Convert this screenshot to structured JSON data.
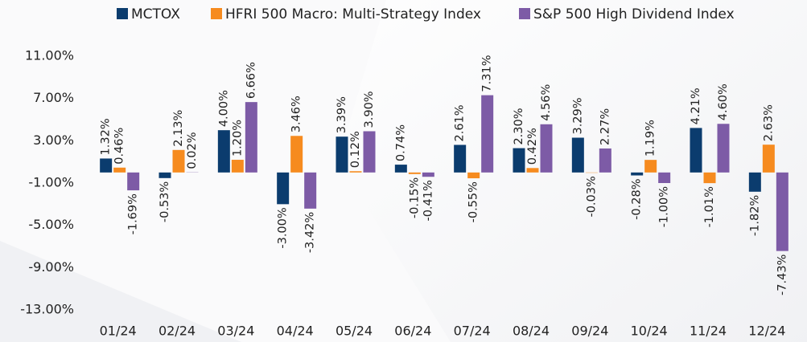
{
  "chart_data": {
    "type": "bar",
    "categories": [
      "01/24",
      "02/24",
      "03/24",
      "04/24",
      "05/24",
      "06/24",
      "07/24",
      "08/24",
      "09/24",
      "10/24",
      "11/24",
      "12/24"
    ],
    "series": [
      {
        "name": "MCTOX",
        "color": "#0b3c6e",
        "values": [
          1.32,
          -0.53,
          4.0,
          -3.0,
          3.39,
          0.74,
          2.61,
          2.3,
          3.29,
          -0.28,
          4.21,
          -1.82
        ],
        "value_labels": [
          "1.32%",
          "-0.53%",
          "4.00%",
          "-3.00%",
          "3.39%",
          "0.74%",
          "2.61%",
          "2.30%",
          "3.29%",
          "-0.28%",
          "4.21%",
          "-1.82%"
        ]
      },
      {
        "name": "HFRI 500 Macro: Multi-Strategy Index",
        "color": "#f68b1f",
        "values": [
          0.46,
          2.13,
          1.2,
          3.46,
          0.12,
          -0.15,
          -0.55,
          0.42,
          -0.03,
          1.19,
          -1.01,
          2.63
        ],
        "value_labels": [
          "0.46%",
          "2.13%",
          "1.20%",
          "3.46%",
          "0.12%",
          "-0.15%",
          "-0.55%",
          "0.42%",
          "-0.03%",
          "1.19%",
          "-1.01%",
          "2.63%"
        ]
      },
      {
        "name": "S&P 500 High Dividend Index",
        "color": "#7d5ba6",
        "values": [
          -1.69,
          0.02,
          6.66,
          -3.42,
          3.9,
          -0.41,
          7.31,
          4.56,
          2.27,
          -1.0,
          4.6,
          -7.43
        ],
        "value_labels": [
          "-1.69%",
          "0.02%",
          "6.66%",
          "-3.42%",
          "3.90%",
          "-0.41%",
          "7.31%",
          "4.56%",
          "2.27%",
          "-1.00%",
          "4.60%",
          "-7.43%"
        ]
      }
    ],
    "ylim": [
      -13,
      11
    ],
    "yticks": [
      {
        "value": 11,
        "label": "11.00%"
      },
      {
        "value": 7,
        "label": "7.00%"
      },
      {
        "value": 3,
        "label": "3.00%"
      },
      {
        "value": -1,
        "label": "-1.00%"
      },
      {
        "value": -5,
        "label": "-5.00%"
      },
      {
        "value": -9,
        "label": "-9.00%"
      },
      {
        "value": -13,
        "label": "-13.00%"
      }
    ],
    "legend": "top"
  }
}
